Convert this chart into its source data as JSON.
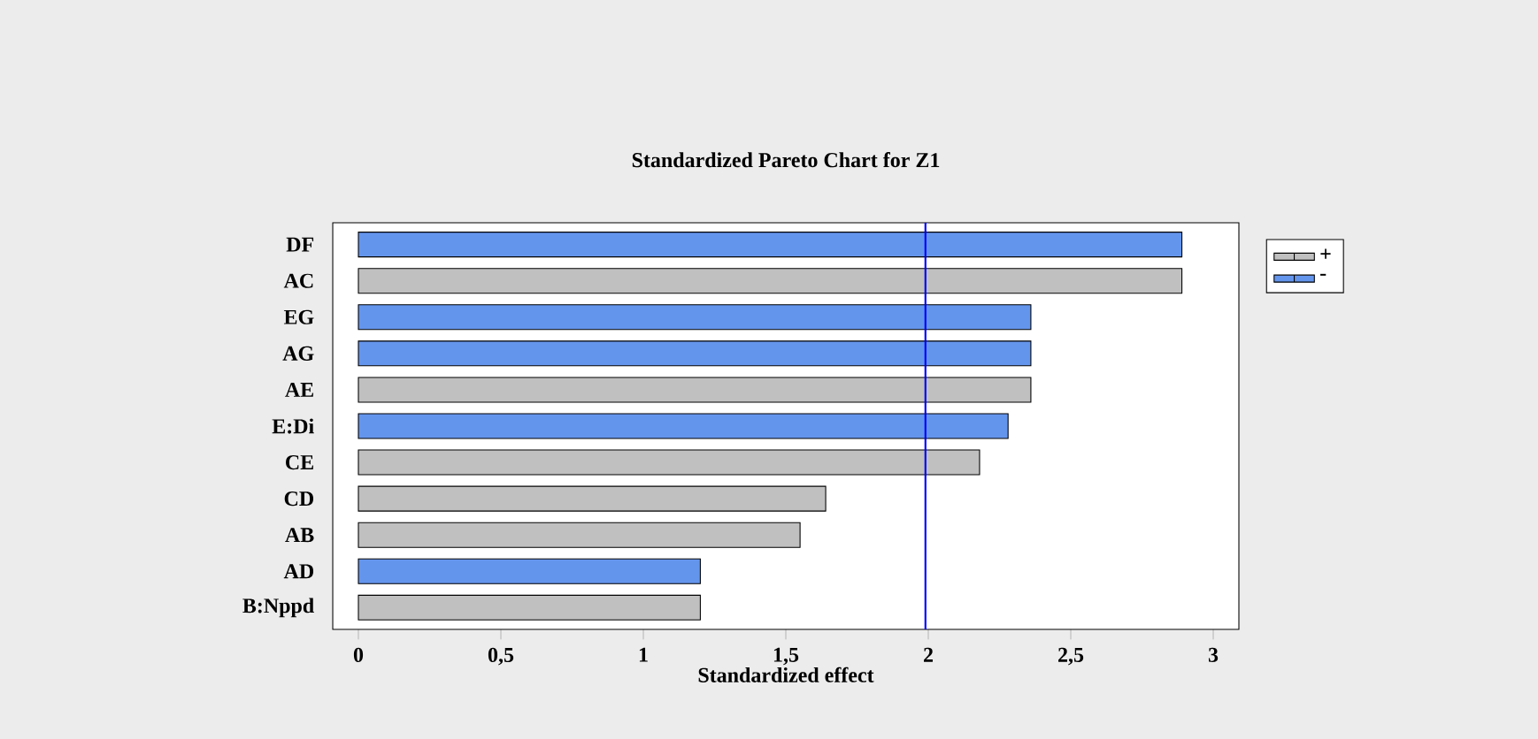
{
  "chart_data": {
    "type": "bar",
    "orientation": "horizontal",
    "title": "Standardized Pareto Chart for Z1",
    "xlabel": "Standardized effect",
    "categories": [
      "DF",
      "AC",
      "EG",
      "AG",
      "AE",
      "E:Di",
      "CE",
      "CD",
      "AB",
      "AD",
      "B:Nppd"
    ],
    "series": [
      {
        "name": "+",
        "color": "#c0c0c0",
        "values": [
          null,
          2.89,
          null,
          null,
          2.36,
          null,
          2.18,
          1.64,
          1.55,
          null,
          1.2
        ]
      },
      {
        "name": "-",
        "color": "#6495ed",
        "values": [
          2.89,
          null,
          2.36,
          2.36,
          null,
          2.28,
          null,
          null,
          null,
          1.2,
          null
        ]
      }
    ],
    "xlim": [
      -0.09,
      3.09
    ],
    "xticks": [
      0,
      {
        "value": 0.5,
        "label": "0,5"
      },
      1,
      {
        "value": 1.5,
        "label": "1,5"
      },
      2,
      {
        "value": 2.5,
        "label": "2,5"
      },
      3
    ],
    "ref_lines": [
      {
        "axis": "x",
        "value": 1.99,
        "color": "#0000ff"
      }
    ],
    "legend": "top right",
    "grid": false
  }
}
